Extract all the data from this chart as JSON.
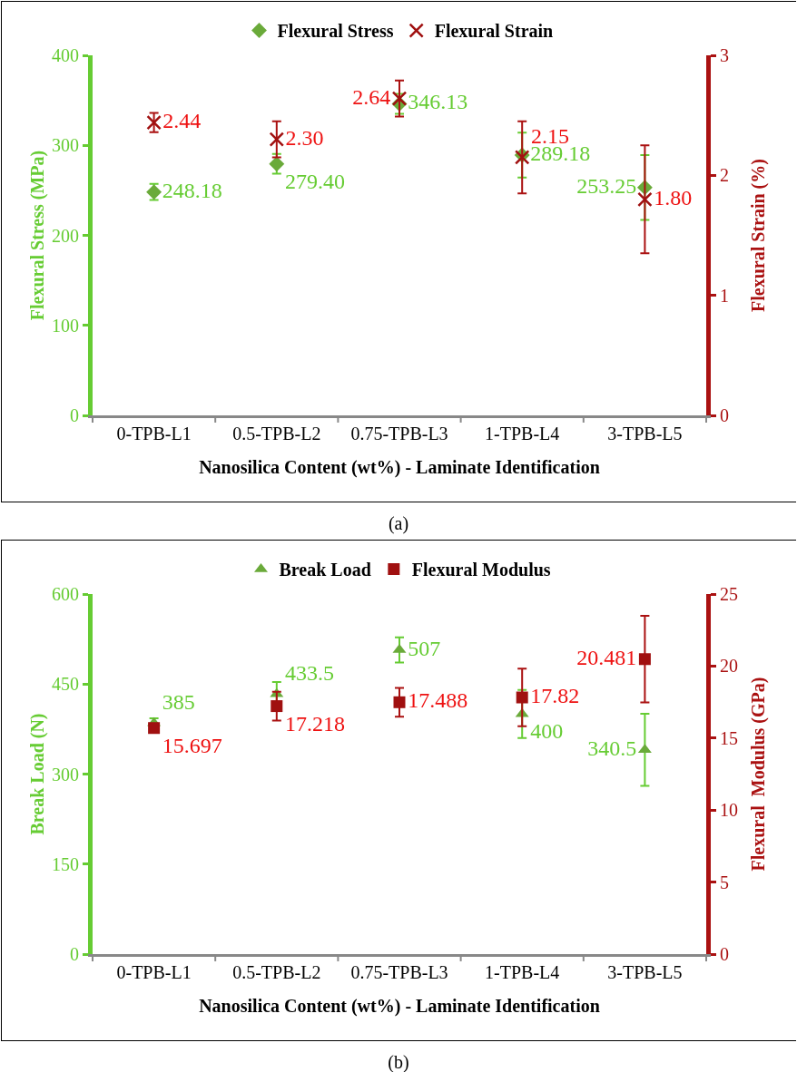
{
  "chart_data": [
    {
      "type": "scatter",
      "xlabel": "Nanosilica Content (wt%) - Laminate Identification",
      "ylabel": "Flexural Stress (MPa)",
      "y2label": "Flexural Strain (%)",
      "categories": [
        "0-TPB-L1",
        "0.5-TPB-L2",
        "0.75-TPB-L3",
        "1-TPB-L4",
        "3-TPB-L5"
      ],
      "series": [
        {
          "name": "Flexural Stress",
          "color": "#6aaa3a",
          "marker": "diamond",
          "values": [
            248.18,
            279.4,
            346.13,
            289.18,
            253.25
          ],
          "value_labels": [
            "248.18",
            "279.40",
            "346.13",
            "289.18",
            "253.25"
          ],
          "errors": [
            9,
            11,
            11,
            25,
            36
          ]
        },
        {
          "name": "Flexural Strain",
          "color": "#a01010",
          "marker": "cross",
          "axis": "y2",
          "values": [
            2.44,
            2.3,
            2.64,
            2.15,
            1.8
          ],
          "value_labels": [
            "2.44",
            "2.30",
            "2.64",
            "2.15",
            "1.80"
          ],
          "errors": [
            0.08,
            0.15,
            0.15,
            0.3,
            0.45
          ]
        }
      ],
      "ylim": [
        0,
        400
      ],
      "yticks": [
        0,
        100,
        200,
        300,
        400
      ],
      "y2lim": [
        0,
        3
      ],
      "y2ticks": [
        0,
        1,
        2,
        3
      ],
      "grid": false,
      "legend": "top",
      "annotations": [
        "(a)"
      ]
    },
    {
      "type": "scatter",
      "xlabel": "Nanosilica Content (wt%) - Laminate Identification",
      "ylabel": "Break Load (N)",
      "y2label": "Flexural  Modulus (GPa)",
      "categories": [
        "0-TPB-L1",
        "0.5-TPB-L2",
        "0.75-TPB-L3",
        "1-TPB-L4",
        "3-TPB-L5"
      ],
      "series": [
        {
          "name": "Break Load",
          "color": "#6aaa3a",
          "marker": "triangle",
          "values": [
            385,
            433.5,
            507,
            400,
            340.5
          ],
          "value_labels": [
            "385",
            "433.5",
            "507",
            "400",
            "340.5"
          ],
          "errors": [
            8,
            20,
            21,
            40,
            60
          ]
        },
        {
          "name": "Flexural Modulus",
          "color": "#a01010",
          "marker": "square",
          "axis": "y2",
          "values": [
            15.697,
            17.218,
            17.488,
            17.82,
            20.481
          ],
          "value_labels": [
            "15.697",
            "17.218",
            "17.488",
            "17.82",
            "20.481"
          ],
          "errors": [
            null,
            1,
            1,
            2,
            3
          ]
        }
      ],
      "ylim": [
        0,
        600
      ],
      "yticks": [
        0,
        150,
        300,
        450,
        600
      ],
      "y2lim": [
        0,
        25
      ],
      "y2ticks": [
        0,
        5,
        10,
        15,
        20,
        25
      ],
      "grid": false,
      "legend": "top",
      "annotations": [
        "(b)"
      ]
    }
  ]
}
